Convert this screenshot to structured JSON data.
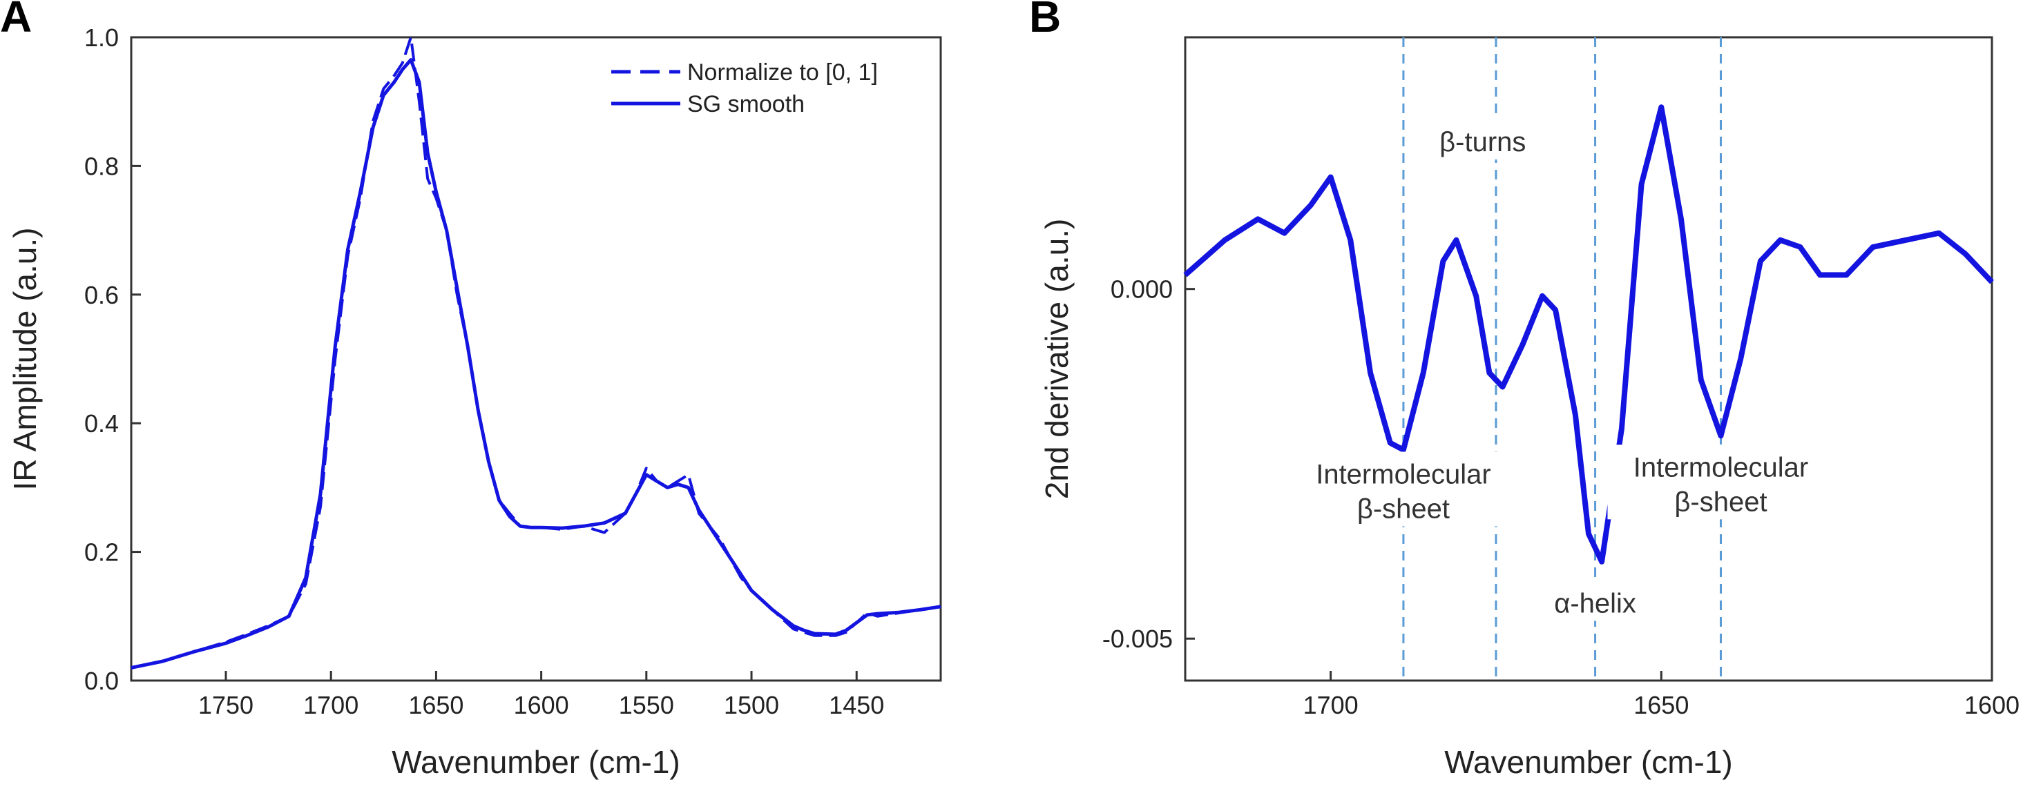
{
  "panels": {
    "a": {
      "letter": "A"
    },
    "b": {
      "letter": "B"
    }
  },
  "chart_data": [
    {
      "type": "line",
      "xlabel": "Wavenumber (cm-1)",
      "ylabel": "IR Amplitude (a.u.)",
      "xlim": [
        1795,
        1410
      ],
      "ylim": [
        0.0,
        1.0
      ],
      "x_reversed": true,
      "xticks": [
        1750,
        1700,
        1650,
        1600,
        1550,
        1500,
        1450
      ],
      "xtick_labels": [
        "1750",
        "1700",
        "1650",
        "1600",
        "1550",
        "1500",
        "1450"
      ],
      "yticks": [
        0.0,
        0.2,
        0.4,
        0.6,
        0.8,
        1.0
      ],
      "ytick_labels": [
        "0.0",
        "0.2",
        "0.4",
        "0.6",
        "0.8",
        "1.0"
      ],
      "legend_placement": "top-right",
      "series": [
        {
          "name": "Normalize to [0, 1]",
          "style": "dashed",
          "color": "#1414e0",
          "x": [
            1795,
            1780,
            1765,
            1750,
            1740,
            1730,
            1720,
            1712,
            1705,
            1698,
            1692,
            1686,
            1680,
            1675,
            1670,
            1666,
            1662,
            1658,
            1654,
            1650,
            1645,
            1640,
            1635,
            1630,
            1625,
            1620,
            1615,
            1610,
            1605,
            1600,
            1590,
            1580,
            1570,
            1560,
            1555,
            1550,
            1545,
            1540,
            1535,
            1530,
            1525,
            1520,
            1515,
            1510,
            1505,
            1500,
            1490,
            1480,
            1475,
            1470,
            1460,
            1455,
            1450,
            1445,
            1440,
            1430,
            1420,
            1410
          ],
          "values": [
            0.02,
            0.03,
            0.045,
            0.06,
            0.072,
            0.085,
            0.1,
            0.15,
            0.27,
            0.5,
            0.66,
            0.75,
            0.87,
            0.92,
            0.94,
            0.96,
            1.0,
            0.9,
            0.78,
            0.75,
            0.7,
            0.6,
            0.52,
            0.42,
            0.34,
            0.28,
            0.26,
            0.24,
            0.238,
            0.238,
            0.235,
            0.24,
            0.23,
            0.26,
            0.29,
            0.33,
            0.31,
            0.3,
            0.31,
            0.32,
            0.26,
            0.24,
            0.22,
            0.19,
            0.16,
            0.14,
            0.11,
            0.08,
            0.075,
            0.07,
            0.07,
            0.075,
            0.09,
            0.105,
            0.1,
            0.105,
            0.11,
            0.115
          ]
        },
        {
          "name": "SG smooth",
          "style": "solid",
          "color": "#1414e0",
          "x": [
            1795,
            1780,
            1765,
            1750,
            1740,
            1730,
            1720,
            1712,
            1705,
            1698,
            1692,
            1686,
            1680,
            1675,
            1670,
            1666,
            1662,
            1658,
            1654,
            1650,
            1645,
            1640,
            1635,
            1630,
            1625,
            1620,
            1615,
            1610,
            1605,
            1600,
            1590,
            1580,
            1570,
            1560,
            1555,
            1550,
            1545,
            1540,
            1535,
            1530,
            1525,
            1520,
            1515,
            1510,
            1505,
            1500,
            1490,
            1480,
            1475,
            1470,
            1460,
            1455,
            1450,
            1445,
            1440,
            1430,
            1420,
            1410
          ],
          "values": [
            0.02,
            0.03,
            0.045,
            0.058,
            0.07,
            0.083,
            0.1,
            0.16,
            0.29,
            0.52,
            0.67,
            0.76,
            0.86,
            0.91,
            0.93,
            0.95,
            0.965,
            0.93,
            0.82,
            0.76,
            0.7,
            0.61,
            0.52,
            0.42,
            0.34,
            0.28,
            0.255,
            0.24,
            0.238,
            0.238,
            0.237,
            0.24,
            0.245,
            0.26,
            0.29,
            0.32,
            0.31,
            0.3,
            0.305,
            0.3,
            0.265,
            0.24,
            0.215,
            0.19,
            0.165,
            0.14,
            0.11,
            0.085,
            0.078,
            0.073,
            0.072,
            0.078,
            0.09,
            0.102,
            0.104,
            0.106,
            0.11,
            0.115
          ]
        }
      ]
    },
    {
      "type": "line",
      "xlabel": "Wavenumber (cm-1)",
      "ylabel": "2nd derivative (a.u.)",
      "xlim": [
        1722,
        1600
      ],
      "ylim": [
        -0.0056,
        0.0036
      ],
      "x_reversed": true,
      "xticks": [
        1700,
        1650,
        1600
      ],
      "xtick_labels": [
        "1700",
        "1650",
        "1600"
      ],
      "yticks": [
        0.0,
        -0.005
      ],
      "ytick_labels": [
        "0.000",
        "-0.005"
      ],
      "series": [
        {
          "style": "solid",
          "color": "#1414e0",
          "x": [
            1722,
            1716,
            1711,
            1707,
            1703,
            1700,
            1697,
            1694,
            1691,
            1689,
            1686,
            1683,
            1681,
            1678,
            1676,
            1674,
            1671,
            1668,
            1666,
            1663,
            1661,
            1659,
            1656,
            1653,
            1650,
            1647,
            1644,
            1641,
            1638,
            1635,
            1632,
            1629,
            1626,
            1622,
            1618,
            1613,
            1608,
            1604,
            1600
          ],
          "values": [
            0.0002,
            0.0007,
            0.001,
            0.0008,
            0.0012,
            0.0016,
            0.0007,
            -0.0012,
            -0.0022,
            -0.0023,
            -0.0012,
            0.0004,
            0.0007,
            -0.0001,
            -0.0012,
            -0.0014,
            -0.0008,
            -0.0001,
            -0.0003,
            -0.0018,
            -0.0035,
            -0.0039,
            -0.002,
            0.0015,
            0.0026,
            0.001,
            -0.0013,
            -0.0021,
            -0.001,
            0.0004,
            0.0007,
            0.0006,
            0.0002,
            0.0002,
            0.0006,
            0.0007,
            0.0008,
            0.0005,
            0.0001
          ]
        }
      ],
      "reference_lines": [
        1689,
        1675,
        1660,
        1641
      ],
      "annotations": [
        {
          "lines": [
            "Intermolecular",
            "β-sheet"
          ],
          "x": 1689,
          "y": -0.0029
        },
        {
          "lines": [
            "β-turns"
          ],
          "x": 1677,
          "y": 0.0021
        },
        {
          "lines": [
            "α-helix"
          ],
          "x": 1660,
          "y": -0.0045
        },
        {
          "lines": [
            "Intermolecular",
            "β-sheet"
          ],
          "x": 1641,
          "y": -0.0028
        }
      ]
    }
  ]
}
